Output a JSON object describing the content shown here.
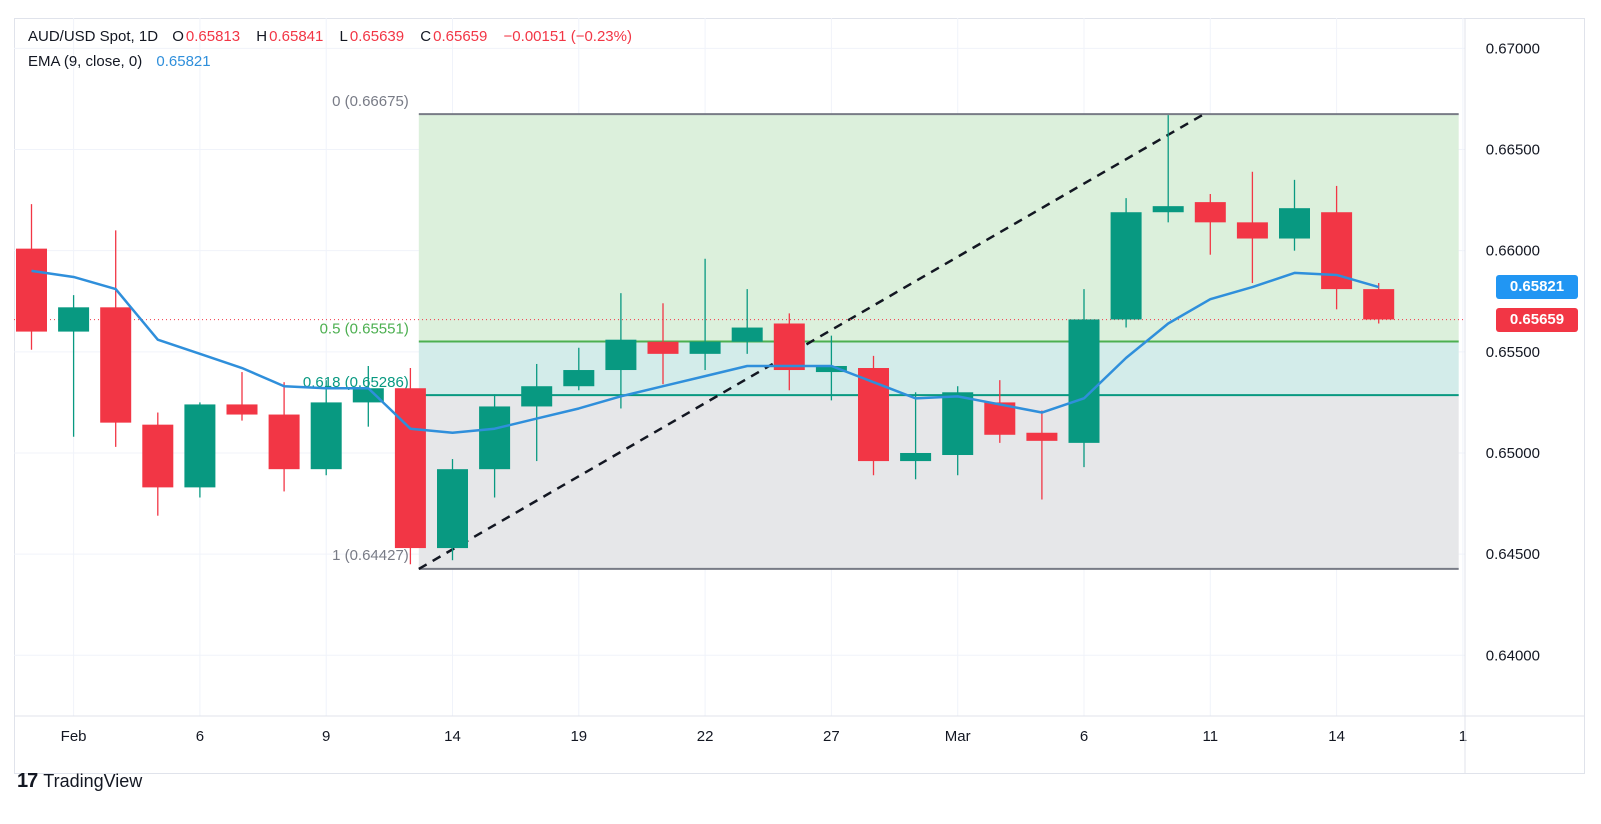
{
  "legend": {
    "symbol": "AUD/USD Spot, 1D",
    "open_label": "O",
    "open": "0.65813",
    "high_label": "H",
    "high": "0.65841",
    "low_label": "L",
    "low": "0.65639",
    "close_label": "C",
    "close": "0.65659",
    "change": "−0.00151 (−0.23%)",
    "ema_label": "EMA (9, close, 0)",
    "ema_value": "0.65821"
  },
  "price_tags": {
    "ema": "0.65821",
    "last": "0.65659"
  },
  "colors": {
    "up": "#089981",
    "down": "#f23645",
    "ema": "#2f8fdb",
    "value_red": "#f23645",
    "fib_upper_fill": "#dcf0dc",
    "fib_mid_fill": "#d3ecea",
    "fib_lower_fill": "#e6e7e9",
    "fib_line": "#787b86",
    "fib_05_line": "#4caf50",
    "fib_0618_line": "#089981"
  },
  "brand": {
    "logo": "17",
    "name": "TradingView"
  },
  "chart_data": {
    "type": "candlestick",
    "y_range": [
      0.637,
      0.6715
    ],
    "y_ticks": [
      "0.67000",
      "0.66500",
      "0.66000",
      "0.65500",
      "0.65000",
      "0.64500",
      "0.64000"
    ],
    "x_labels": [
      {
        "i": 1,
        "text": "Feb"
      },
      {
        "i": 4,
        "text": "6"
      },
      {
        "i": 7,
        "text": "9"
      },
      {
        "i": 10,
        "text": "14"
      },
      {
        "i": 13,
        "text": "19"
      },
      {
        "i": 16,
        "text": "22"
      },
      {
        "i": 19,
        "text": "27"
      },
      {
        "i": 22,
        "text": "Mar"
      },
      {
        "i": 25,
        "text": "6"
      },
      {
        "i": 28,
        "text": "11"
      },
      {
        "i": 31,
        "text": "14"
      },
      {
        "i": 34,
        "text": "1"
      }
    ],
    "candles": [
      {
        "o": 0.6601,
        "h": 0.6623,
        "l": 0.6551,
        "c": 0.656
      },
      {
        "o": 0.656,
        "h": 0.6578,
        "l": 0.6508,
        "c": 0.6572
      },
      {
        "o": 0.6572,
        "h": 0.661,
        "l": 0.6503,
        "c": 0.6515
      },
      {
        "o": 0.6514,
        "h": 0.652,
        "l": 0.6469,
        "c": 0.6483
      },
      {
        "o": 0.6483,
        "h": 0.6525,
        "l": 0.6478,
        "c": 0.6524
      },
      {
        "o": 0.6524,
        "h": 0.654,
        "l": 0.6516,
        "c": 0.6519
      },
      {
        "o": 0.6519,
        "h": 0.6535,
        "l": 0.6481,
        "c": 0.6492
      },
      {
        "o": 0.6492,
        "h": 0.6536,
        "l": 0.6489,
        "c": 0.6525
      },
      {
        "o": 0.6525,
        "h": 0.6543,
        "l": 0.6513,
        "c": 0.6532
      },
      {
        "o": 0.6532,
        "h": 0.6542,
        "l": 0.6445,
        "c": 0.6453
      },
      {
        "o": 0.6453,
        "h": 0.6497,
        "l": 0.6447,
        "c": 0.6492
      },
      {
        "o": 0.6492,
        "h": 0.6529,
        "l": 0.6478,
        "c": 0.6523
      },
      {
        "o": 0.6523,
        "h": 0.6544,
        "l": 0.6496,
        "c": 0.6533
      },
      {
        "o": 0.6533,
        "h": 0.6552,
        "l": 0.6531,
        "c": 0.6541
      },
      {
        "o": 0.6541,
        "h": 0.6579,
        "l": 0.6522,
        "c": 0.6556
      },
      {
        "o": 0.6555,
        "h": 0.6574,
        "l": 0.6534,
        "c": 0.6549
      },
      {
        "o": 0.6549,
        "h": 0.6596,
        "l": 0.6541,
        "c": 0.6555
      },
      {
        "o": 0.6555,
        "h": 0.6581,
        "l": 0.6549,
        "c": 0.6562
      },
      {
        "o": 0.6564,
        "h": 0.6569,
        "l": 0.6531,
        "c": 0.6541
      },
      {
        "o": 0.654,
        "h": 0.6558,
        "l": 0.6526,
        "c": 0.6543
      },
      {
        "o": 0.6542,
        "h": 0.6548,
        "l": 0.6489,
        "c": 0.6496
      },
      {
        "o": 0.6496,
        "h": 0.653,
        "l": 0.6487,
        "c": 0.65
      },
      {
        "o": 0.6499,
        "h": 0.6533,
        "l": 0.6489,
        "c": 0.653
      },
      {
        "o": 0.6525,
        "h": 0.6536,
        "l": 0.6505,
        "c": 0.6509
      },
      {
        "o": 0.651,
        "h": 0.6521,
        "l": 0.6477,
        "c": 0.6506
      },
      {
        "o": 0.6505,
        "h": 0.6581,
        "l": 0.6493,
        "c": 0.6566
      },
      {
        "o": 0.6566,
        "h": 0.6626,
        "l": 0.6562,
        "c": 0.6619
      },
      {
        "o": 0.6619,
        "h": 0.6667,
        "l": 0.6614,
        "c": 0.6622
      },
      {
        "o": 0.6624,
        "h": 0.6628,
        "l": 0.6598,
        "c": 0.6614
      },
      {
        "o": 0.6614,
        "h": 0.6639,
        "l": 0.6584,
        "c": 0.6606
      },
      {
        "o": 0.6606,
        "h": 0.6635,
        "l": 0.66,
        "c": 0.6621
      },
      {
        "o": 0.6619,
        "h": 0.6632,
        "l": 0.6571,
        "c": 0.6581
      },
      {
        "o": 0.6581,
        "h": 0.6584,
        "l": 0.6564,
        "c": 0.6566
      }
    ],
    "ema": [
      0.659,
      0.6587,
      0.6581,
      0.6556,
      0.6549,
      0.6542,
      0.6533,
      0.6532,
      0.6532,
      0.6512,
      0.651,
      0.6512,
      0.6517,
      0.6522,
      0.6528,
      0.6533,
      0.6538,
      0.6543,
      0.6543,
      0.6543,
      0.6535,
      0.6527,
      0.6528,
      0.6524,
      0.652,
      0.6527,
      0.6547,
      0.6564,
      0.6576,
      0.6582,
      0.6589,
      0.6588,
      0.6582
    ],
    "fibonacci": {
      "start_index": 9.2,
      "end_index": 33.9,
      "trend_from": {
        "i": 9.2,
        "price": 0.64427
      },
      "trend_to": {
        "i": 27.85,
        "price": 0.66675
      },
      "levels": [
        {
          "ratio": 0,
          "price": 0.66675,
          "label": "0 (0.66675)"
        },
        {
          "ratio": 0.5,
          "price": 0.65551,
          "label": "0.5 (0.65551)"
        },
        {
          "ratio": 0.618,
          "price": 0.65286,
          "label": "0.618 (0.65286)"
        },
        {
          "ratio": 1,
          "price": 0.64427,
          "label": "1 (0.64427)"
        }
      ]
    },
    "last_price": 0.65659
  }
}
